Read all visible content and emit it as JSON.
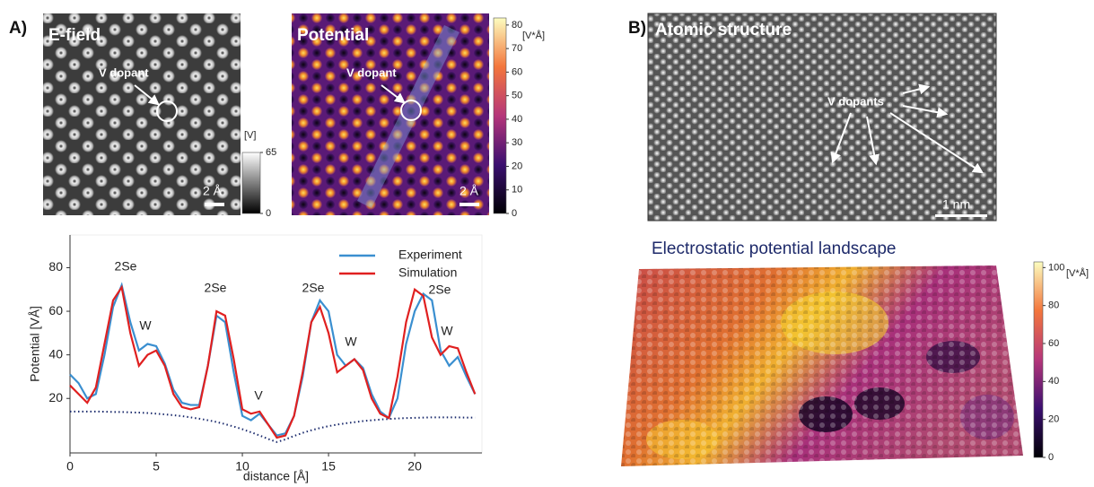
{
  "panel_a": {
    "label": "A)",
    "e_field": {
      "title": "E-field",
      "annotation": "V dopant",
      "scale_bar": "2 Å",
      "colorbar": {
        "unit": "[V]",
        "lim": [
          0,
          65
        ],
        "ticks": [
          0,
          65
        ]
      }
    },
    "potential": {
      "title": "Potential",
      "annotation": "V dopant",
      "scale_bar": "2 Å",
      "colorbar": {
        "unit": "[V*Å]",
        "lim": [
          0,
          83
        ],
        "ticks": [
          0,
          10,
          20,
          30,
          40,
          50,
          60,
          70,
          80
        ]
      }
    }
  },
  "chart_data": {
    "type": "line",
    "xlabel": "distance [Å]",
    "ylabel": "Potential [VÅ]",
    "x": [
      0,
      0.5,
      1,
      1.5,
      2,
      2.5,
      3,
      3.5,
      4,
      4.5,
      5,
      5.5,
      6,
      6.5,
      7,
      7.5,
      8,
      8.5,
      9,
      9.5,
      10,
      10.5,
      11,
      11.5,
      12,
      12.5,
      13,
      13.5,
      14,
      14.5,
      15,
      15.5,
      16,
      16.5,
      17,
      17.5,
      18,
      18.5,
      19,
      19.5,
      20,
      20.5,
      21,
      21.5,
      22,
      22.5,
      23,
      23.5
    ],
    "series": [
      {
        "name": "Experiment",
        "color": "#3a8fd0",
        "linestyle": "solid",
        "values": [
          31,
          27,
          20,
          22,
          40,
          62,
          72,
          55,
          42,
          45,
          44,
          36,
          24,
          18,
          17,
          17,
          35,
          58,
          55,
          32,
          12,
          10,
          13,
          8,
          3,
          4,
          12,
          30,
          55,
          65,
          60,
          40,
          35,
          38,
          34,
          22,
          14,
          11,
          20,
          45,
          60,
          68,
          65,
          42,
          35,
          39,
          30,
          22
        ]
      },
      {
        "name": "Simulation",
        "color": "#e02020",
        "linestyle": "solid",
        "values": [
          26,
          22,
          18,
          25,
          45,
          65,
          71,
          50,
          35,
          40,
          42,
          35,
          22,
          16,
          15,
          16,
          35,
          60,
          58,
          38,
          15,
          13,
          14,
          8,
          2,
          3,
          12,
          32,
          55,
          62,
          50,
          32,
          35,
          38,
          33,
          20,
          13,
          11,
          30,
          55,
          70,
          67,
          48,
          40,
          44,
          43,
          32,
          22
        ]
      },
      {
        "color": "#1a2a6c",
        "linestyle": "dotted",
        "values": [
          14,
          14,
          14,
          14,
          13.9,
          13.8,
          13.8,
          13.6,
          13.5,
          13.3,
          13,
          12.7,
          12.3,
          11.9,
          11.3,
          10.7,
          10,
          9.2,
          8.2,
          7.1,
          5.9,
          4.5,
          3,
          1.4,
          0,
          1.2,
          2.8,
          4.2,
          5.4,
          6.4,
          7.3,
          8,
          8.6,
          9.1,
          9.6,
          10,
          10.3,
          10.6,
          10.8,
          11,
          11.1,
          11.2,
          11.3,
          11.3,
          11.3,
          11.3,
          11.2,
          11.2
        ]
      }
    ],
    "annotations": [
      "2Se",
      "W",
      "2Se",
      "V",
      "2Se",
      "W",
      "2Se",
      "W"
    ],
    "xlim": [
      0,
      23.9
    ],
    "ylim": [
      -5,
      95
    ],
    "xticks": [
      0,
      5,
      10,
      15,
      20
    ],
    "yticks": [
      20,
      40,
      60,
      80
    ],
    "legend": "upper right"
  },
  "panel_b": {
    "label": "B)",
    "atomic": {
      "title": "Atomic structure",
      "annotation": "V dopants",
      "scale_bar": "1 nm"
    },
    "landscape": {
      "title": "Electrostatic potential landscape",
      "colorbar": {
        "unit": "[V*Å]",
        "lim": [
          0,
          103
        ],
        "ticks": [
          0,
          20,
          40,
          60,
          80,
          100
        ]
      }
    }
  }
}
